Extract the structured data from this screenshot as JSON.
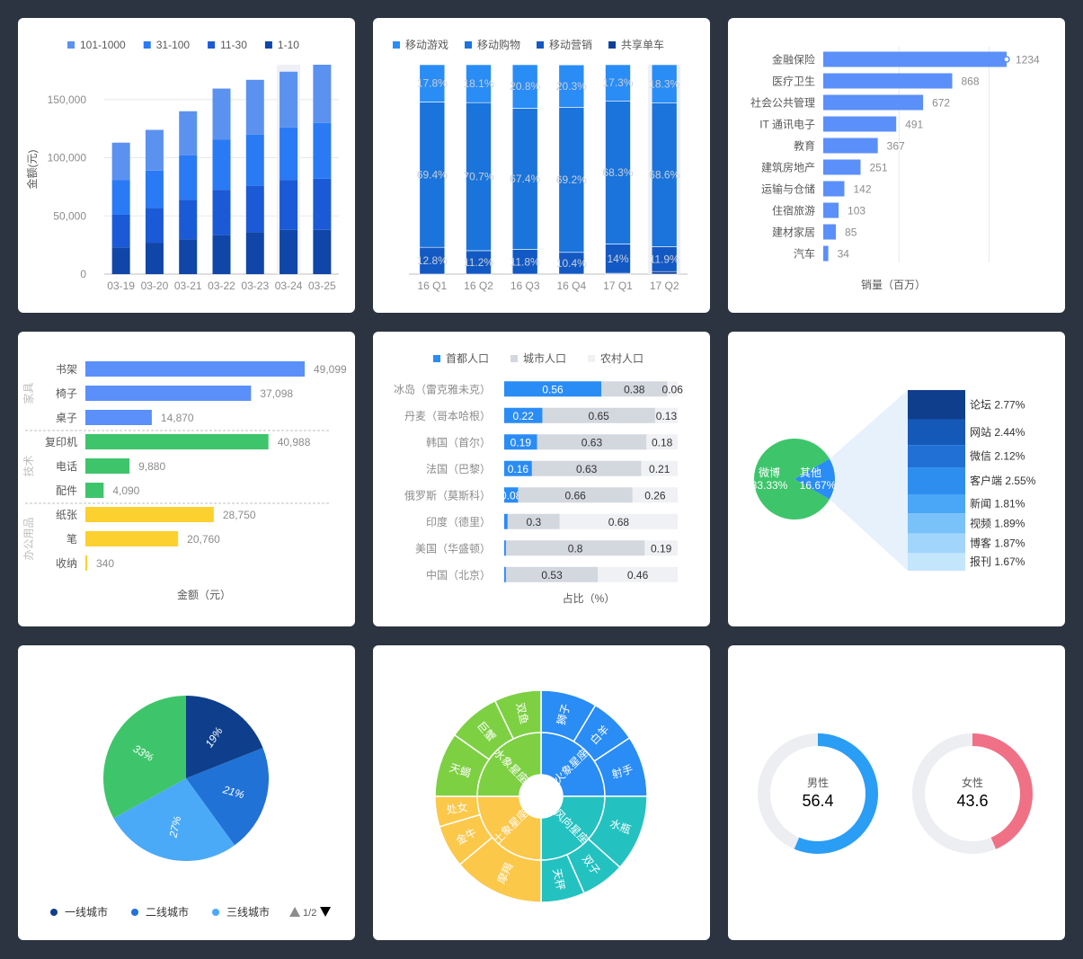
{
  "chart_data": [
    {
      "id": "c1",
      "type": "bar",
      "stacked": true,
      "categories": [
        "03-19",
        "03-20",
        "03-21",
        "03-22",
        "03-23",
        "03-24",
        "03-25"
      ],
      "ylabel": "金额(元)",
      "yticks": [
        "0",
        "50,000",
        "100,000",
        "150,000"
      ],
      "ylim": [
        0,
        180000
      ],
      "legend_position": "top",
      "grid": true,
      "highlight_index": 5,
      "series": [
        {
          "name": "1-10",
          "color": "#0f46a8",
          "values": [
            23000,
            27000,
            30000,
            33500,
            36000,
            38000,
            38000
          ]
        },
        {
          "name": "11-30",
          "color": "#1a5ad6",
          "values": [
            28000,
            30000,
            34000,
            39000,
            40000,
            43000,
            44000
          ]
        },
        {
          "name": "31-100",
          "color": "#2a7af5",
          "values": [
            30000,
            32000,
            38000,
            43000,
            44000,
            45000,
            48000
          ]
        },
        {
          "name": "101-1000",
          "color": "#5b92f0",
          "values": [
            32000,
            35000,
            38000,
            44000,
            47000,
            48000,
            50000
          ]
        }
      ],
      "legend_order": [
        "101-1000",
        "31-100",
        "11-30",
        "1-10"
      ]
    },
    {
      "id": "c2",
      "type": "bar",
      "stacked": true,
      "percent": true,
      "categories": [
        "16 Q1",
        "16 Q2",
        "16 Q3",
        "16 Q4",
        "17 Q1",
        "17 Q2"
      ],
      "legend_position": "top",
      "highlight_index": 5,
      "series": [
        {
          "name": "移动游戏",
          "color": "#2a8cf5",
          "values": [
            17.8,
            18.1,
            20.8,
            20.3,
            17.3,
            18.3
          ],
          "labels": [
            "17.8%",
            "18.1%",
            "20.8%",
            "20.3%",
            "17.3%",
            "18.3%"
          ]
        },
        {
          "name": "移动购物",
          "color": "#1a74dc",
          "values": [
            69.4,
            70.7,
            67.4,
            69.2,
            68.3,
            68.6
          ],
          "labels": [
            "69.4%",
            "70.7%",
            "67.4%",
            "69.2%",
            "68.3%",
            "68.6%"
          ]
        },
        {
          "name": "移动营销",
          "color": "#1359c4",
          "values": [
            12.8,
            11.2,
            11.8,
            10.4,
            14,
            11.9
          ],
          "labels": [
            "12.8%",
            "11.2%",
            "11.8%",
            "10.4%",
            "14%",
            "11.9%"
          ]
        },
        {
          "name": "共享单车",
          "color": "#0d3f9a",
          "values": [
            0,
            0,
            0,
            0,
            0.4,
            1.2
          ]
        }
      ]
    },
    {
      "id": "c3",
      "type": "bar",
      "orientation": "horizontal",
      "categories": [
        "金融保险",
        "医疗卫生",
        "社会公共管理",
        "IT 通讯电子",
        "教育",
        "建筑房地产",
        "运输与仓储",
        "住宿旅游",
        "建材家居",
        "汽车"
      ],
      "values": [
        1234,
        868,
        672,
        491,
        367,
        251,
        142,
        103,
        85,
        34
      ],
      "labels": [
        "1234",
        "868",
        "672",
        "491",
        "367",
        "251",
        "142",
        "103",
        "85",
        "34"
      ],
      "xlabel": "销量（百万）",
      "xlim": [
        0,
        1400
      ],
      "color": "#5b8ff9"
    },
    {
      "id": "c4",
      "type": "bar",
      "orientation": "horizontal",
      "grouped": true,
      "xlabel": "金额（元）",
      "xlim": [
        0,
        50000
      ],
      "groups": [
        {
          "name": "家具",
          "color": "#5b8ff9",
          "categories": [
            "书架",
            "椅子",
            "桌子"
          ],
          "values": [
            49099,
            37098,
            14870
          ],
          "labels": [
            "49,099",
            "37,098",
            "14,870"
          ]
        },
        {
          "name": "技术",
          "color": "#3ec56b",
          "categories": [
            "复印机",
            "电话",
            "配件"
          ],
          "values": [
            40988,
            9880,
            4090
          ],
          "labels": [
            "40,988",
            "9,880",
            "4,090"
          ]
        },
        {
          "name": "办公用品",
          "color": "#fcd02e",
          "categories": [
            "纸张",
            "笔",
            "收纳"
          ],
          "values": [
            28750,
            20760,
            340
          ],
          "labels": [
            "28,750",
            "20,760",
            "340"
          ]
        }
      ]
    },
    {
      "id": "c5",
      "type": "bar",
      "orientation": "horizontal",
      "stacked": true,
      "categories": [
        "冰岛（雷克雅未克）",
        "丹麦（哥本哈根）",
        "韩国（首尔）",
        "法国（巴黎）",
        "俄罗斯（莫斯科）",
        "印度（德里）",
        "美国（华盛顿）",
        "中国（北京）"
      ],
      "xlabel": "占比（%）",
      "legend_position": "top",
      "series": [
        {
          "name": "首都人口",
          "color": "#2a8cf5",
          "values": [
            0.56,
            0.22,
            0.19,
            0.16,
            0.08,
            0.02,
            0.01,
            0.01
          ],
          "labels": [
            "0.56",
            "0.22",
            "0.19",
            "0.16",
            "0.08",
            "",
            "",
            ""
          ]
        },
        {
          "name": "城市人口",
          "color": "#d3d7de",
          "values": [
            0.38,
            0.65,
            0.63,
            0.63,
            0.66,
            0.3,
            0.8,
            0.53
          ],
          "labels": [
            "0.38",
            "0.65",
            "0.63",
            "0.63",
            "0.66",
            "0.3",
            "0.8",
            "0.53"
          ]
        },
        {
          "name": "农村人口",
          "color": "#f0f1f4",
          "values": [
            0.06,
            0.13,
            0.18,
            0.21,
            0.26,
            0.68,
            0.19,
            0.46
          ],
          "labels": [
            "0.06",
            "0.13",
            "0.18",
            "0.21",
            "0.26",
            "0.68",
            "0.19",
            "0.46"
          ]
        }
      ]
    },
    {
      "id": "c6",
      "type": "pie",
      "slices": [
        {
          "name": "微博",
          "value": 83.33,
          "label": "83.33%",
          "color": "#3ec56b"
        },
        {
          "name": "其他",
          "value": 16.67,
          "label": "16.67%",
          "color": "#2a8cf5"
        }
      ],
      "breakdown": {
        "type": "bar",
        "stacked": true,
        "items": [
          {
            "name": "论坛",
            "value": 2.77,
            "label": "论坛 2.77%",
            "color": "#0f3f8c"
          },
          {
            "name": "网站",
            "value": 2.44,
            "label": "网站 2.44%",
            "color": "#1559b8"
          },
          {
            "name": "微信",
            "value": 2.12,
            "label": "微信 2.12%",
            "color": "#2170d6"
          },
          {
            "name": "客户端",
            "value": 2.55,
            "label": "客户端 2.55%",
            "color": "#2e8ef0"
          },
          {
            "name": "新闻",
            "value": 1.81,
            "label": "新闻 1.81%",
            "color": "#4aa6f7"
          },
          {
            "name": "视频",
            "value": 1.89,
            "label": "视频 1.89%",
            "color": "#78c1f9"
          },
          {
            "name": "博客",
            "value": 1.87,
            "label": "博客 1.87%",
            "color": "#a1d5fb"
          },
          {
            "name": "报刊",
            "value": 1.67,
            "label": "报刊 1.67%",
            "color": "#c4e6fd"
          }
        ]
      }
    },
    {
      "id": "c7",
      "type": "pie",
      "legend_position": "bottom",
      "slices": [
        {
          "name": "一线城市",
          "value": 19,
          "label": "19%",
          "color": "#0f3f8c"
        },
        {
          "name": "二线城市",
          "value": 21,
          "label": "21%",
          "color": "#2072d6"
        },
        {
          "name": "三线城市",
          "value": 27,
          "label": "27%",
          "color": "#4baaf7"
        },
        {
          "name": "",
          "value": 33,
          "label": "33%",
          "color": "#3ec56b"
        }
      ],
      "legend_page": "1/2"
    },
    {
      "id": "c8",
      "type": "sunburst",
      "inner": [
        {
          "name": "火象星座",
          "value": 3,
          "color": "#2a8cf5"
        },
        {
          "name": "风向星座",
          "value": 3,
          "color": "#24c1c1"
        },
        {
          "name": "土象星座",
          "value": 3,
          "color": "#fcc84a"
        },
        {
          "name": "水象星座",
          "value": 3,
          "color": "#7ed043"
        }
      ],
      "outer": [
        {
          "name": "狮子",
          "parent": "火象星座"
        },
        {
          "name": "白羊",
          "parent": "火象星座"
        },
        {
          "name": "射手",
          "parent": "火象星座"
        },
        {
          "name": "水瓶",
          "parent": "风向星座"
        },
        {
          "name": "双子",
          "parent": "风向星座"
        },
        {
          "name": "天秤",
          "parent": "风向星座"
        },
        {
          "name": "摩羯",
          "parent": "土象星座"
        },
        {
          "name": "金牛",
          "parent": "土象星座"
        },
        {
          "name": "处女",
          "parent": "土象星座"
        },
        {
          "name": "天蝎",
          "parent": "水象星座"
        },
        {
          "name": "巨蟹",
          "parent": "水象星座"
        },
        {
          "name": "双鱼",
          "parent": "水象星座"
        }
      ],
      "outer_values": [
        1.2,
        1,
        1.3,
        1.4,
        0.8,
        0.8,
        1.5,
        0.7,
        0.5,
        1.1,
        0.9,
        0.8
      ]
    },
    {
      "id": "c9",
      "type": "pie",
      "variant": "donut",
      "items": [
        {
          "name": "男性",
          "value": 56.4,
          "value_label": "56.4",
          "color": "#2a9df5",
          "track": "#eceef2"
        },
        {
          "name": "女性",
          "value": 43.6,
          "value_label": "43.6",
          "color": "#f07086",
          "track": "#eceef2"
        }
      ]
    }
  ]
}
